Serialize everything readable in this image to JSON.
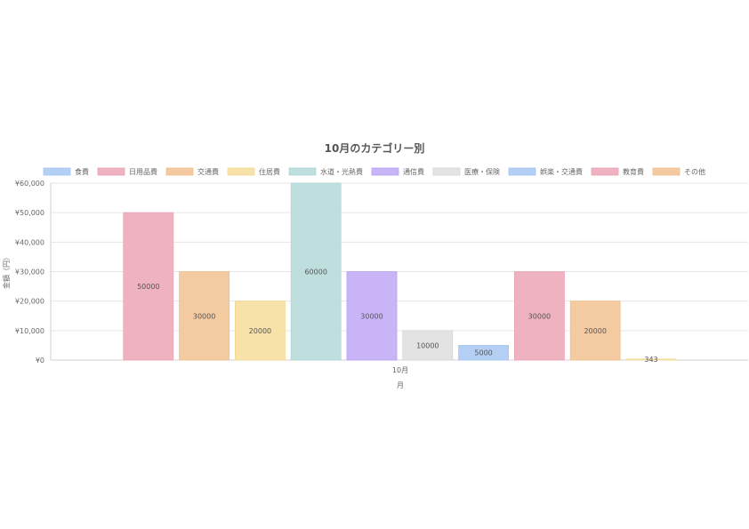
{
  "chart_data": {
    "type": "bar",
    "title": "10月のカテゴリー別",
    "categories": [
      "10月"
    ],
    "xlabel": "月",
    "ylabel": "金額（円）",
    "ylim": [
      0,
      60000
    ],
    "yticks": [
      "¥0",
      "¥10,000",
      "¥20,000",
      "¥30,000",
      "¥40,000",
      "¥50,000",
      "¥60,000"
    ],
    "ytick_values": [
      0,
      10000,
      20000,
      30000,
      40000,
      50000,
      60000
    ],
    "grid": true,
    "legend_position": "top",
    "series": [
      {
        "name": "食費",
        "values": [
          0
        ],
        "color": "#b3cff3",
        "border": "#a7c6f0"
      },
      {
        "name": "日用品費",
        "values": [
          50000
        ],
        "color": "#efb2c1",
        "border": "#e9a4b5"
      },
      {
        "name": "交通費",
        "values": [
          30000
        ],
        "color": "#f4caa0",
        "border": "#efc090"
      },
      {
        "name": "住居費",
        "values": [
          20000
        ],
        "color": "#f7e2a9",
        "border": "#f2d993"
      },
      {
        "name": "水道・光熱費",
        "values": [
          60000
        ],
        "color": "#bfdfdf",
        "border": "#afd6d6"
      },
      {
        "name": "通信費",
        "values": [
          30000
        ],
        "color": "#c8b4f6",
        "border": "#b9a2f2"
      },
      {
        "name": "医療・保険",
        "values": [
          10000
        ],
        "color": "#e3e3e3",
        "border": "#d6d6d6"
      },
      {
        "name": "娯楽・交通費",
        "values": [
          5000
        ],
        "color": "#b3cff3",
        "border": "#a7c6f0"
      },
      {
        "name": "教育費",
        "values": [
          30000
        ],
        "color": "#efb2c1",
        "border": "#e9a4b5"
      },
      {
        "name": "その他",
        "values": [
          20000
        ],
        "color": "#f4caa0",
        "border": "#efc090"
      },
      {
        "name": "",
        "values": [
          343
        ],
        "color": "#f7e2a9",
        "border": "#f2d993"
      }
    ],
    "data_labels": [
      "",
      "50000",
      "30000",
      "20000",
      "60000",
      "30000",
      "10000",
      "5000",
      "30000",
      "20000",
      "343"
    ]
  }
}
